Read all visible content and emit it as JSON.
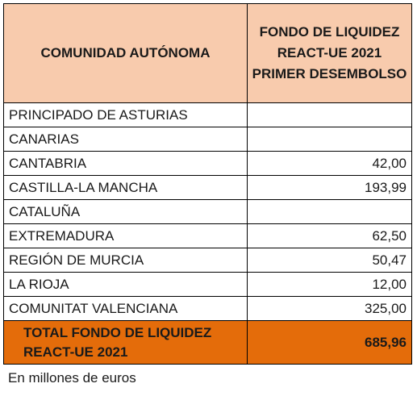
{
  "header": {
    "col1": "COMUNIDAD AUTÓNOMA",
    "col2": "FONDO DE LIQUIDEZ REACT-UE 2021 PRIMER DESEMBOLSO"
  },
  "rows": [
    {
      "name": "PRINCIPADO DE ASTURIAS",
      "value": ""
    },
    {
      "name": "CANARIAS",
      "value": ""
    },
    {
      "name": "CANTABRIA",
      "value": "42,00"
    },
    {
      "name": "CASTILLA-LA MANCHA",
      "value": "193,99"
    },
    {
      "name": "CATALUÑA",
      "value": ""
    },
    {
      "name": "EXTREMADURA",
      "value": "62,50"
    },
    {
      "name": "REGIÓN DE MURCIA",
      "value": "50,47"
    },
    {
      "name": "LA RIOJA",
      "value": "12,00"
    },
    {
      "name": "COMUNITAT VALENCIANA",
      "value": "325,00"
    }
  ],
  "total": {
    "label": "TOTAL FONDO DE LIQUIDEZ REACT-UE 2021",
    "value": "685,96"
  },
  "note": "En millones de euros",
  "colors": {
    "header_bg": "#F8CBAD",
    "total_bg": "#E46C0A"
  }
}
